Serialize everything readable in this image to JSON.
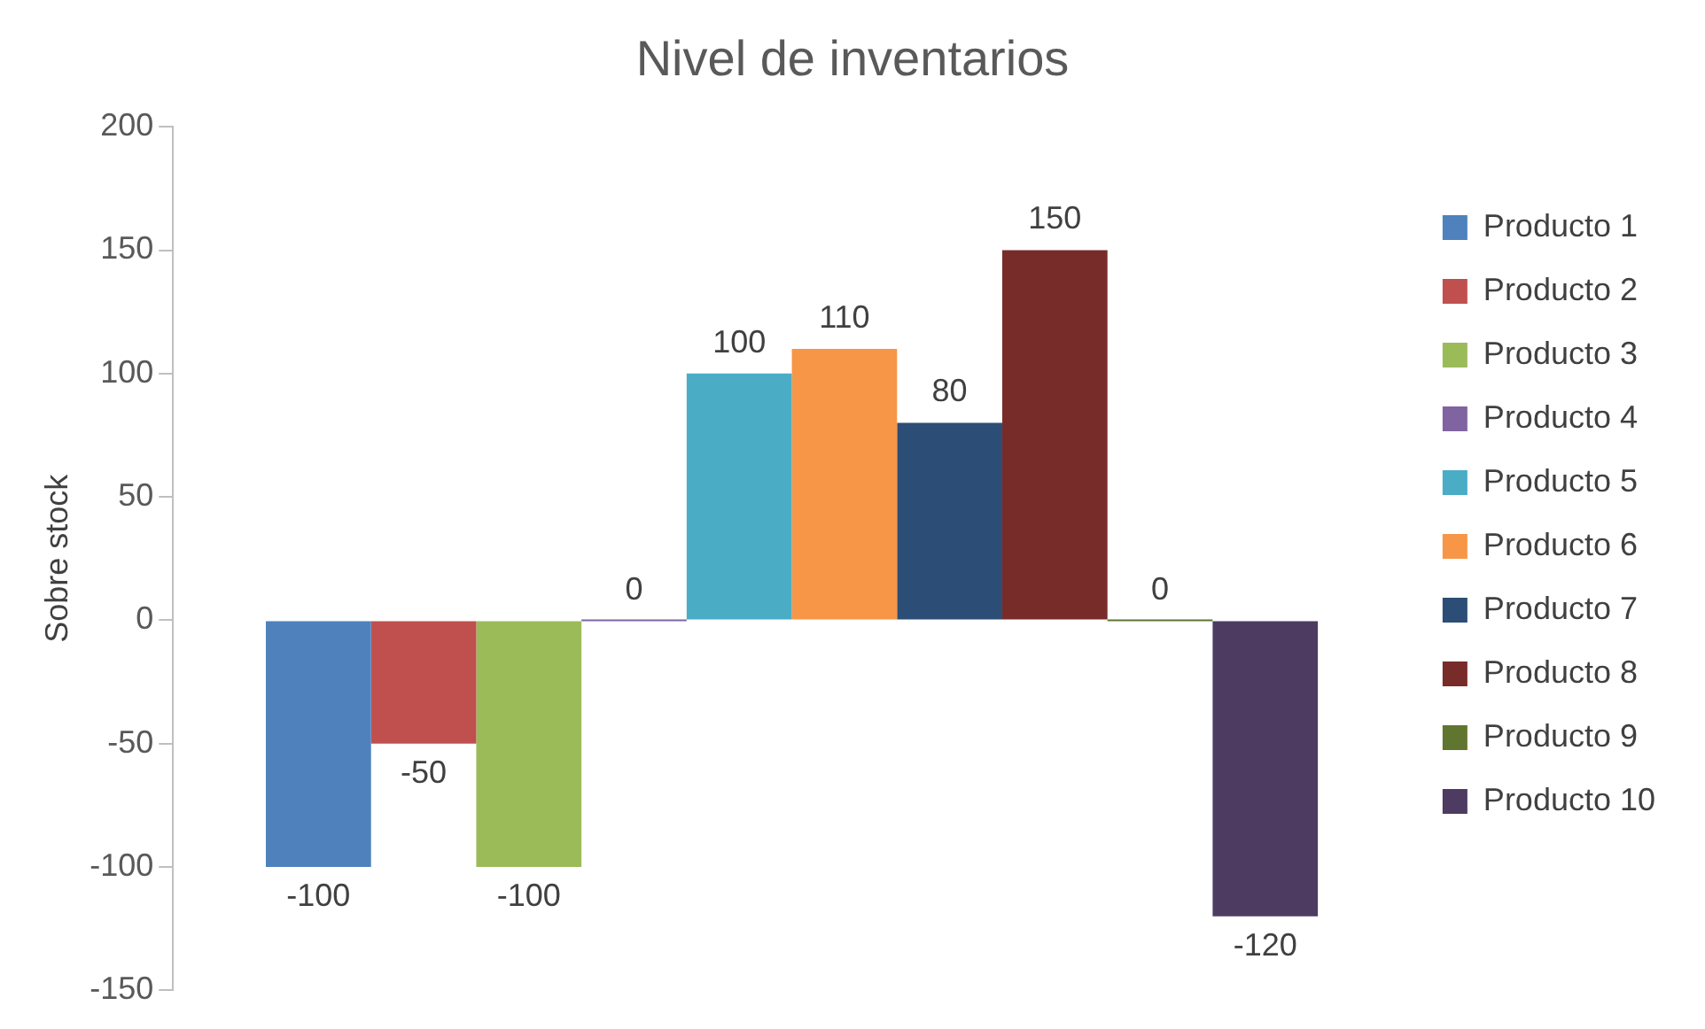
{
  "chart_data": {
    "type": "bar",
    "title": "Nivel de inventarios",
    "ylabel": "Sobre stock",
    "categories": [
      null
    ],
    "series": [
      {
        "name": "Producto 1",
        "color": "#4f81bd",
        "values": [
          -100
        ]
      },
      {
        "name": "Producto 2",
        "color": "#c0504d",
        "values": [
          -50
        ]
      },
      {
        "name": "Producto 3",
        "color": "#9bbb59",
        "values": [
          -100
        ]
      },
      {
        "name": "Producto 4",
        "color": "#8064a2",
        "values": [
          0
        ]
      },
      {
        "name": "Producto 5",
        "color": "#4bacc6",
        "values": [
          100
        ]
      },
      {
        "name": "Producto 6",
        "color": "#f79646",
        "values": [
          110
        ]
      },
      {
        "name": "Producto 7",
        "color": "#2c4d75",
        "values": [
          80
        ]
      },
      {
        "name": "Producto 8",
        "color": "#772c2a",
        "values": [
          150
        ]
      },
      {
        "name": "Producto 9",
        "color": "#5f7530",
        "values": [
          0
        ]
      },
      {
        "name": "Producto 10",
        "color": "#4d3b62",
        "values": [
          -120
        ]
      }
    ],
    "ylim": [
      -150,
      200
    ],
    "yticks": [
      -150,
      -100,
      -50,
      0,
      50,
      100,
      150,
      200
    ],
    "grid": false,
    "legend": "right",
    "data_labels": true
  }
}
